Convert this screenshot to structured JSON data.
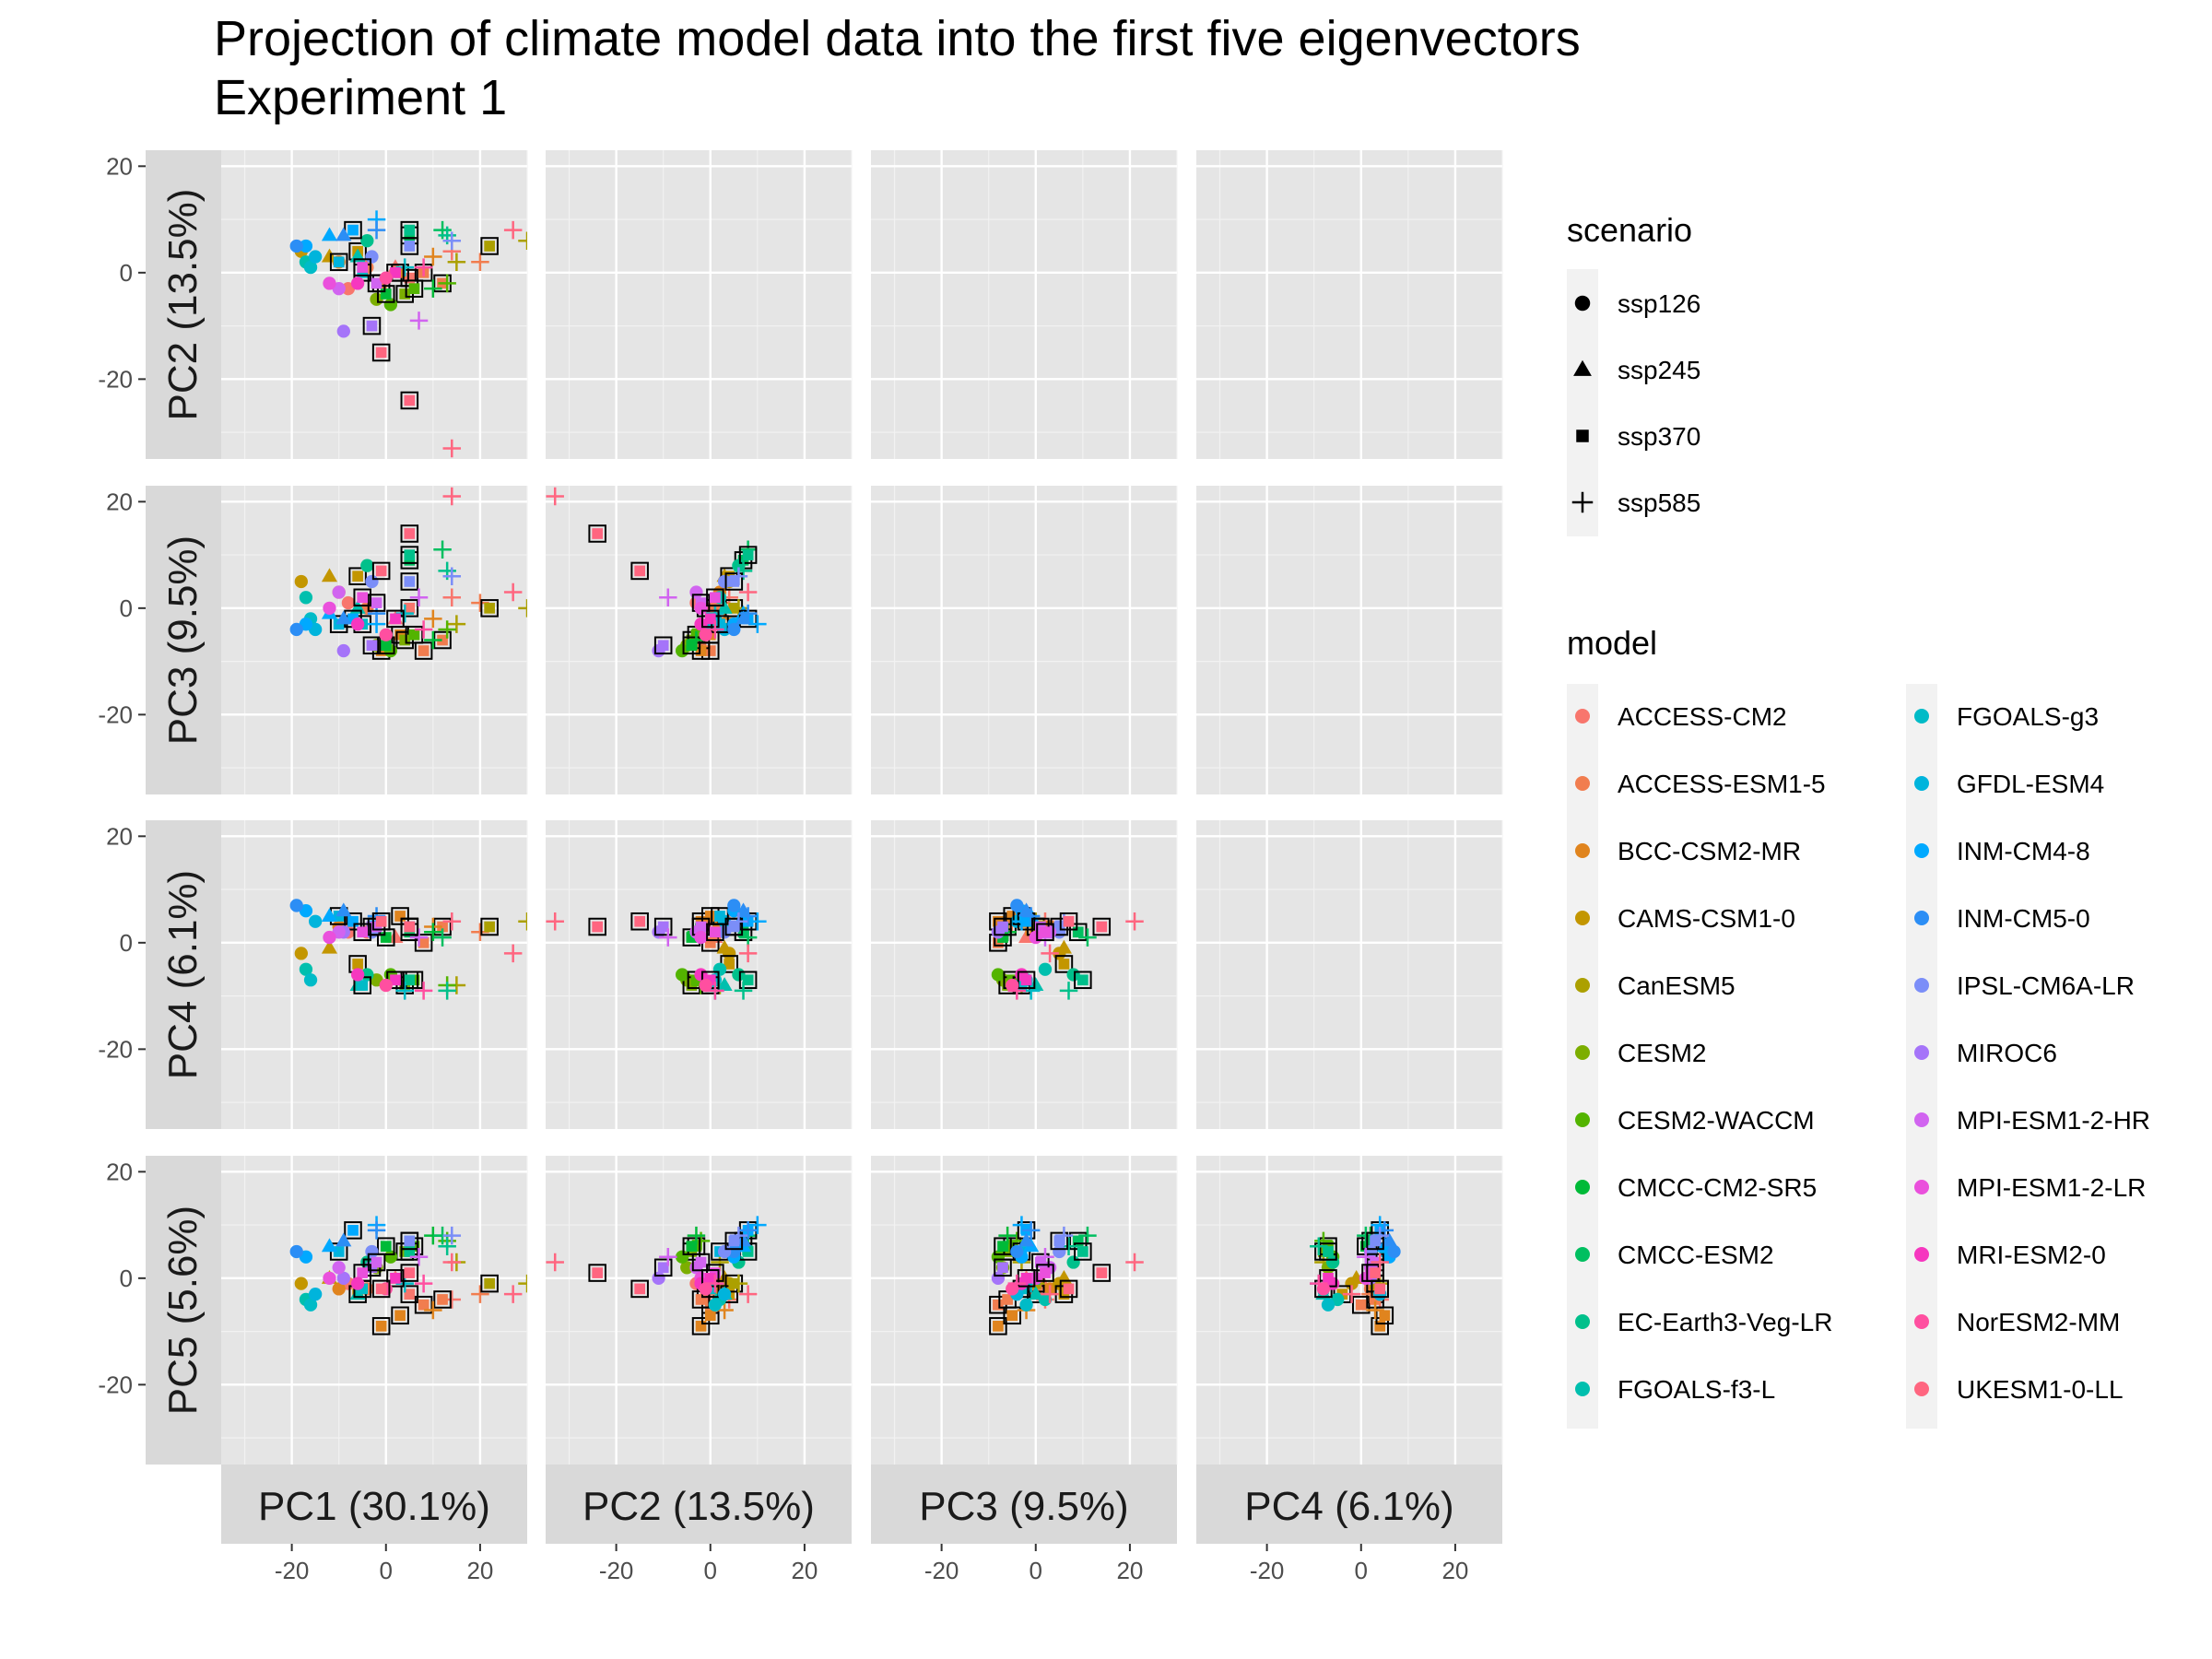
{
  "title_line1": "Projection of climate model data into the first five eigenvectors",
  "title_line2": " Experiment 1",
  "chart_data": {
    "type": "scatter",
    "facet_columns": [
      "PC1 (30.1%)",
      "PC2 (13.5%)",
      "PC3 (9.5%)",
      "PC4 (6.1%)"
    ],
    "facet_rows": [
      "PC2 (13.5%)",
      "PC3 (9.5%)",
      "PC4 (6.1%)",
      "PC5 (5.6%)"
    ],
    "xlim": [
      -35,
      30
    ],
    "ylim": [
      -35,
      23
    ],
    "x_ticks": [
      -20,
      0,
      20
    ],
    "y_ticks": [
      20,
      0,
      -20
    ],
    "x_tick_labels": [
      "-20",
      "0",
      "20"
    ],
    "y_tick_labels": [
      "20",
      "0",
      "-20"
    ],
    "grid": true,
    "panel_background": "#e5e5e5",
    "legend_position": "right",
    "legend_scenario": {
      "title": "scenario",
      "items": [
        {
          "label": "ssp126",
          "shape": "circle"
        },
        {
          "label": "ssp245",
          "shape": "triangle"
        },
        {
          "label": "ssp370",
          "shape": "square"
        },
        {
          "label": "ssp585",
          "shape": "plus"
        }
      ]
    },
    "legend_model": {
      "title": "model",
      "items": [
        {
          "label": "ACCESS-CM2",
          "color": "#F8766D"
        },
        {
          "label": "ACCESS-ESM1-5",
          "color": "#F17D4F"
        },
        {
          "label": "BCC-CSM2-MR",
          "color": "#E0841E"
        },
        {
          "label": "CAMS-CSM1-0",
          "color": "#C39600"
        },
        {
          "label": "CanESM5",
          "color": "#ACA000"
        },
        {
          "label": "CESM2",
          "color": "#7CAE00"
        },
        {
          "label": "CESM2-WACCM",
          "color": "#53B400"
        },
        {
          "label": "CMCC-CM2-SR5",
          "color": "#00BA38"
        },
        {
          "label": "CMCC-ESM2",
          "color": "#00BF60"
        },
        {
          "label": "EC-Earth3-Veg-LR",
          "color": "#00C08B"
        },
        {
          "label": "FGOALS-f3-L",
          "color": "#00BFAE"
        },
        {
          "label": "FGOALS-g3",
          "color": "#00BBC7"
        },
        {
          "label": "GFDL-ESM4",
          "color": "#00B4DC"
        },
        {
          "label": "INM-CM4-8",
          "color": "#00A9FF"
        },
        {
          "label": "INM-CM5-0",
          "color": "#2C8EF5"
        },
        {
          "label": "IPSL-CM6A-LR",
          "color": "#7B8EF8"
        },
        {
          "label": "MIROC6",
          "color": "#A574F9"
        },
        {
          "label": "MPI-ESM1-2-HR",
          "color": "#D164F0"
        },
        {
          "label": "MPI-ESM1-2-LR",
          "color": "#EA50DC"
        },
        {
          "label": "MRI-ESM2-0",
          "color": "#F637BF"
        },
        {
          "label": "NorESM2-MM",
          "color": "#FF4FA0"
        },
        {
          "label": "UKESM1-0-LL",
          "color": "#FF6680"
        }
      ]
    },
    "points": {
      "description_note": "",
      "series": [
        {
          "model": 0,
          "scenario": 0,
          "pc": [
            -8,
            -3,
            1,
            2,
            -1
          ]
        },
        {
          "model": 0,
          "scenario": 1,
          "pc": [
            2,
            1,
            -2,
            1,
            0
          ]
        },
        {
          "model": 0,
          "scenario": 2,
          "pc": [
            5,
            -1,
            0,
            3,
            -3
          ]
        },
        {
          "model": 0,
          "scenario": 3,
          "pc": [
            14,
            4,
            2,
            4,
            -4
          ]
        },
        {
          "model": 1,
          "scenario": 0,
          "pc": [
            -4,
            1,
            0,
            2,
            -2
          ]
        },
        {
          "model": 1,
          "scenario": 2,
          "pc": [
            8,
            0,
            -8,
            0,
            -5
          ]
        },
        {
          "model": 1,
          "scenario": 2,
          "pc": [
            12,
            -2,
            -6,
            3,
            -4
          ]
        },
        {
          "model": 1,
          "scenario": 3,
          "pc": [
            20,
            2,
            1,
            2,
            -3
          ]
        },
        {
          "model": 2,
          "scenario": 0,
          "pc": [
            -10,
            2,
            3,
            3,
            -2
          ]
        },
        {
          "model": 2,
          "scenario": 2,
          "pc": [
            -1,
            -2,
            -8,
            4,
            -9
          ]
        },
        {
          "model": 2,
          "scenario": 2,
          "pc": [
            3,
            0,
            -5,
            5,
            -7
          ]
        },
        {
          "model": 2,
          "scenario": 3,
          "pc": [
            10,
            3,
            -2,
            3,
            -6
          ]
        },
        {
          "model": 3,
          "scenario": 0,
          "pc": [
            -18,
            4,
            5,
            -2,
            -1
          ]
        },
        {
          "model": 3,
          "scenario": 1,
          "pc": [
            -12,
            3,
            6,
            -1,
            0
          ]
        },
        {
          "model": 3,
          "scenario": 2,
          "pc": [
            -6,
            4,
            6,
            -4,
            -3
          ]
        },
        {
          "model": 4,
          "scenario": 2,
          "pc": [
            22,
            5,
            0,
            3,
            -1
          ]
        },
        {
          "model": 4,
          "scenario": 3,
          "pc": [
            30,
            6,
            0,
            4,
            -1
          ]
        },
        {
          "model": 4,
          "scenario": 3,
          "pc": [
            15,
            2,
            -3,
            -8,
            3
          ]
        },
        {
          "model": 5,
          "scenario": 0,
          "pc": [
            -2,
            -5,
            -7,
            -7,
            2
          ]
        },
        {
          "model": 5,
          "scenario": 2,
          "pc": [
            4,
            -4,
            -6,
            -8,
            5
          ]
        },
        {
          "model": 6,
          "scenario": 0,
          "pc": [
            1,
            -6,
            -8,
            -6,
            4
          ]
        },
        {
          "model": 6,
          "scenario": 2,
          "pc": [
            6,
            -3,
            -5,
            -7,
            6
          ]
        },
        {
          "model": 6,
          "scenario": 3,
          "pc": [
            13,
            -2,
            -4,
            -8,
            7
          ]
        },
        {
          "model": 7,
          "scenario": 2,
          "pc": [
            0,
            -4,
            -7,
            1,
            6
          ]
        },
        {
          "model": 7,
          "scenario": 3,
          "pc": [
            10,
            -3,
            -6,
            2,
            8
          ]
        },
        {
          "model": 8,
          "scenario": 2,
          "pc": [
            5,
            7,
            9,
            2,
            7
          ]
        },
        {
          "model": 8,
          "scenario": 3,
          "pc": [
            12,
            8,
            11,
            1,
            8
          ]
        },
        {
          "model": 9,
          "scenario": 0,
          "pc": [
            -4,
            6,
            8,
            -6,
            3
          ]
        },
        {
          "model": 9,
          "scenario": 2,
          "pc": [
            5,
            8,
            10,
            -7,
            5
          ]
        },
        {
          "model": 9,
          "scenario": 3,
          "pc": [
            13,
            7,
            7,
            -9,
            6
          ]
        },
        {
          "model": 10,
          "scenario": 0,
          "pc": [
            -17,
            2,
            2,
            -5,
            -4
          ]
        },
        {
          "model": 10,
          "scenario": 1,
          "pc": [
            -6,
            3,
            0,
            -8,
            -3
          ]
        },
        {
          "model": 11,
          "scenario": 0,
          "pc": [
            -16,
            1,
            -2,
            -7,
            -5
          ]
        },
        {
          "model": 11,
          "scenario": 2,
          "pc": [
            -5,
            0,
            -3,
            -8,
            -2
          ]
        },
        {
          "model": 11,
          "scenario": 3,
          "pc": [
            4,
            1,
            -1,
            -9,
            -1
          ]
        },
        {
          "model": 12,
          "scenario": 0,
          "pc": [
            -15,
            3,
            -4,
            4,
            -3
          ]
        },
        {
          "model": 12,
          "scenario": 2,
          "pc": [
            -10,
            2,
            -3,
            5,
            5
          ]
        },
        {
          "model": 13,
          "scenario": 0,
          "pc": [
            -17,
            5,
            -3,
            6,
            4
          ]
        },
        {
          "model": 13,
          "scenario": 1,
          "pc": [
            -12,
            7,
            -1,
            5,
            6
          ]
        },
        {
          "model": 13,
          "scenario": 2,
          "pc": [
            -7,
            8,
            -2,
            4,
            9
          ]
        },
        {
          "model": 13,
          "scenario": 3,
          "pc": [
            -2,
            10,
            -3,
            4,
            10
          ]
        },
        {
          "model": 14,
          "scenario": 0,
          "pc": [
            -19,
            5,
            -4,
            7,
            5
          ]
        },
        {
          "model": 14,
          "scenario": 1,
          "pc": [
            -9,
            7,
            -2,
            6,
            7
          ]
        },
        {
          "model": 14,
          "scenario": 3,
          "pc": [
            -2,
            8,
            -1,
            5,
            9
          ]
        },
        {
          "model": 15,
          "scenario": 0,
          "pc": [
            -3,
            3,
            5,
            2,
            5
          ]
        },
        {
          "model": 15,
          "scenario": 2,
          "pc": [
            5,
            5,
            5,
            3,
            7
          ]
        },
        {
          "model": 15,
          "scenario": 3,
          "pc": [
            14,
            6,
            6,
            4,
            8
          ]
        },
        {
          "model": 16,
          "scenario": 0,
          "pc": [
            -9,
            -11,
            -8,
            2,
            0
          ]
        },
        {
          "model": 16,
          "scenario": 2,
          "pc": [
            -3,
            -10,
            -7,
            3,
            2
          ]
        },
        {
          "model": 17,
          "scenario": 0,
          "pc": [
            -10,
            -3,
            3,
            2,
            2
          ]
        },
        {
          "model": 17,
          "scenario": 2,
          "pc": [
            -2,
            -2,
            1,
            3,
            3
          ]
        },
        {
          "model": 17,
          "scenario": 3,
          "pc": [
            7,
            -9,
            2,
            1,
            4
          ]
        },
        {
          "model": 18,
          "scenario": 0,
          "pc": [
            -12,
            -2,
            0,
            1,
            0
          ]
        },
        {
          "model": 18,
          "scenario": 2,
          "pc": [
            -5,
            1,
            2,
            2,
            1
          ]
        },
        {
          "model": 19,
          "scenario": 0,
          "pc": [
            -6,
            -2,
            -3,
            -6,
            -1
          ]
        },
        {
          "model": 19,
          "scenario": 2,
          "pc": [
            2,
            0,
            -2,
            -7,
            0
          ]
        },
        {
          "model": 20,
          "scenario": 0,
          "pc": [
            0,
            -1,
            -5,
            -8,
            -2
          ]
        },
        {
          "model": 20,
          "scenario": 3,
          "pc": [
            8,
            1,
            -4,
            -9,
            -1
          ]
        },
        {
          "model": 21,
          "scenario": 2,
          "pc": [
            5,
            -24,
            14,
            3,
            1
          ]
        },
        {
          "model": 21,
          "scenario": 2,
          "pc": [
            -1,
            -15,
            7,
            4,
            -2
          ]
        },
        {
          "model": 21,
          "scenario": 3,
          "pc": [
            14,
            -33,
            21,
            4,
            3
          ]
        },
        {
          "model": 21,
          "scenario": 3,
          "pc": [
            27,
            8,
            3,
            -2,
            -3
          ]
        }
      ]
    }
  }
}
